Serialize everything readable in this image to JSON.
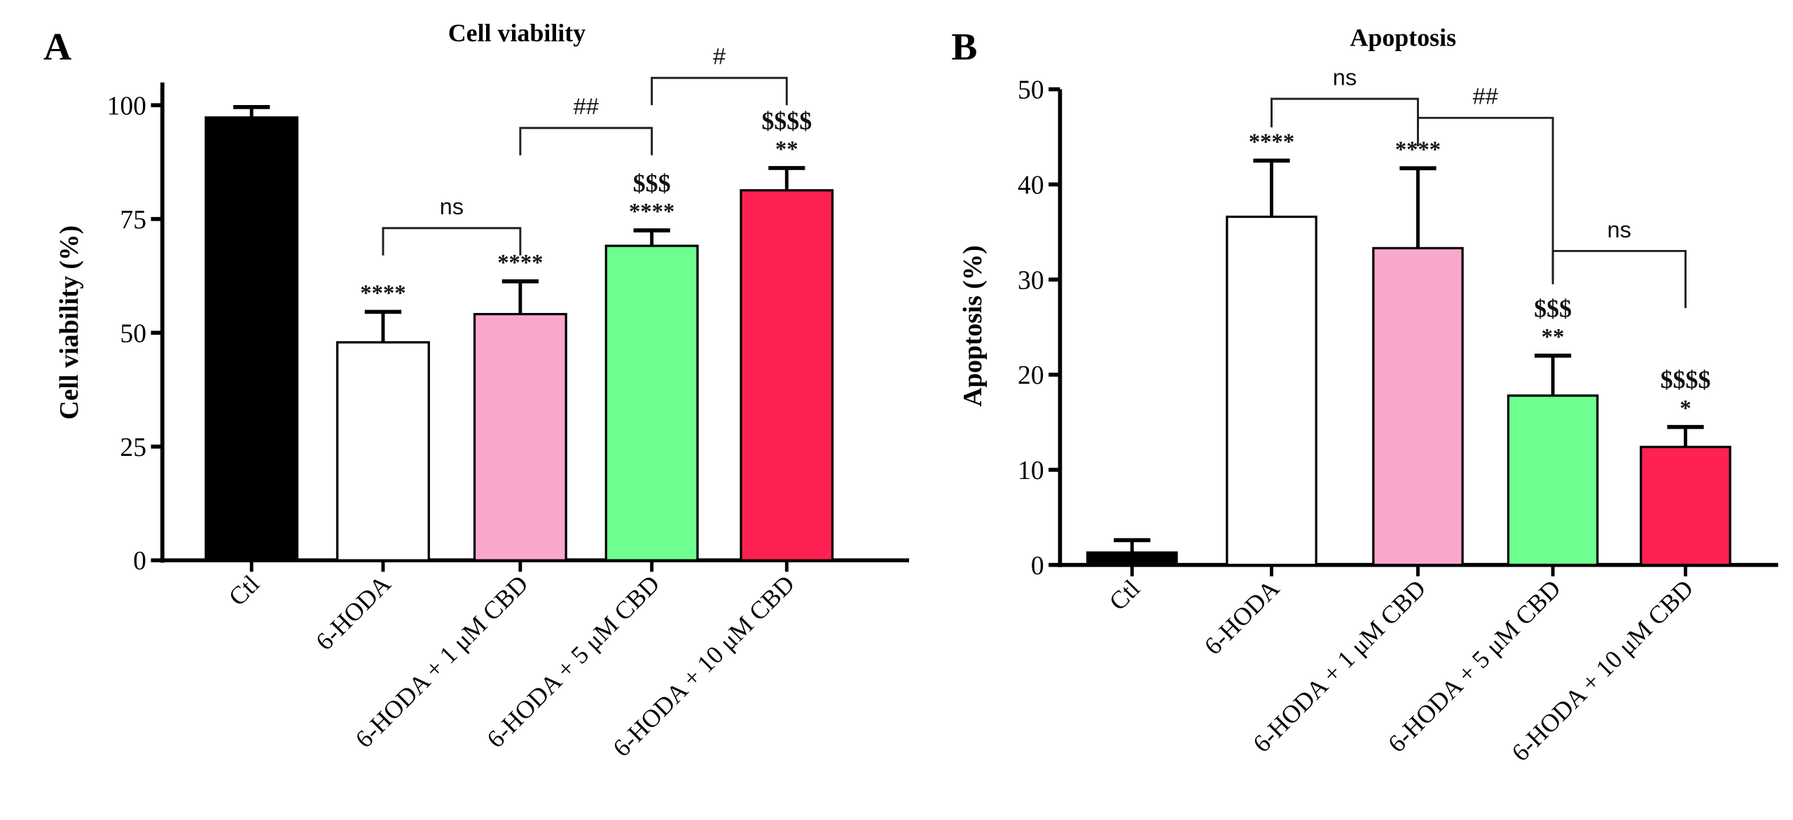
{
  "chart_data": [
    {
      "type": "bar",
      "panel_label": "A",
      "title": "Cell viability",
      "xlabel": "",
      "ylabel": "Cell viability (%)",
      "ylim": [
        0,
        105
      ],
      "yticks": [
        0,
        25,
        50,
        75,
        100
      ],
      "grid": false,
      "categories": [
        "Ctl",
        "6-HODA",
        "6-HODA + 1 μM CBD",
        "6-HODA + 5 μM CBD",
        "6-HODA + 10 μM CBD"
      ],
      "values": [
        97.3,
        47.9,
        54.1,
        69.1,
        81.3
      ],
      "error_upper": [
        99.6,
        54.6,
        61.3,
        72.5,
        86.2
      ],
      "colors": [
        "#000000",
        "#ffffff",
        "#f9a8cc",
        "#6eff8f",
        "#ff2152"
      ],
      "bar_annotations": [
        [],
        [
          "****"
        ],
        [
          "****"
        ],
        [
          "$$$",
          "****"
        ],
        [
          "$$$$",
          "**"
        ]
      ],
      "comparisons": [
        {
          "from": 1,
          "to": 2,
          "label": "ns"
        },
        {
          "from": 2,
          "to": 3,
          "label": "##"
        },
        {
          "from": 3,
          "to": 4,
          "label": "#"
        }
      ]
    },
    {
      "type": "bar",
      "panel_label": "B",
      "title": "Apoptosis",
      "xlabel": "",
      "ylabel": "Apoptosis (%)",
      "ylim": [
        0,
        50
      ],
      "yticks": [
        0,
        10,
        20,
        30,
        40,
        50
      ],
      "grid": false,
      "categories": [
        "Ctl",
        "6-HODA",
        "6-HODA + 1 μM CBD",
        "6-HODA + 5 μM CBD",
        "6-HODA + 10 μM CBD"
      ],
      "values": [
        1.3,
        36.6,
        33.3,
        17.8,
        12.4
      ],
      "error_upper": [
        2.6,
        42.5,
        41.7,
        22.0,
        14.5
      ],
      "colors": [
        "#000000",
        "#ffffff",
        "#f9a8cc",
        "#6eff8f",
        "#ff2152"
      ],
      "bar_annotations": [
        [],
        [
          "****"
        ],
        [
          "****"
        ],
        [
          "$$$",
          "**"
        ],
        [
          "$$$$",
          "*"
        ]
      ],
      "comparisons": [
        {
          "from": 1,
          "to": 2,
          "label": "ns"
        },
        {
          "from": 2,
          "to": 3,
          "label": "##"
        },
        {
          "from": 3,
          "to": 4,
          "label": "ns"
        }
      ]
    }
  ]
}
